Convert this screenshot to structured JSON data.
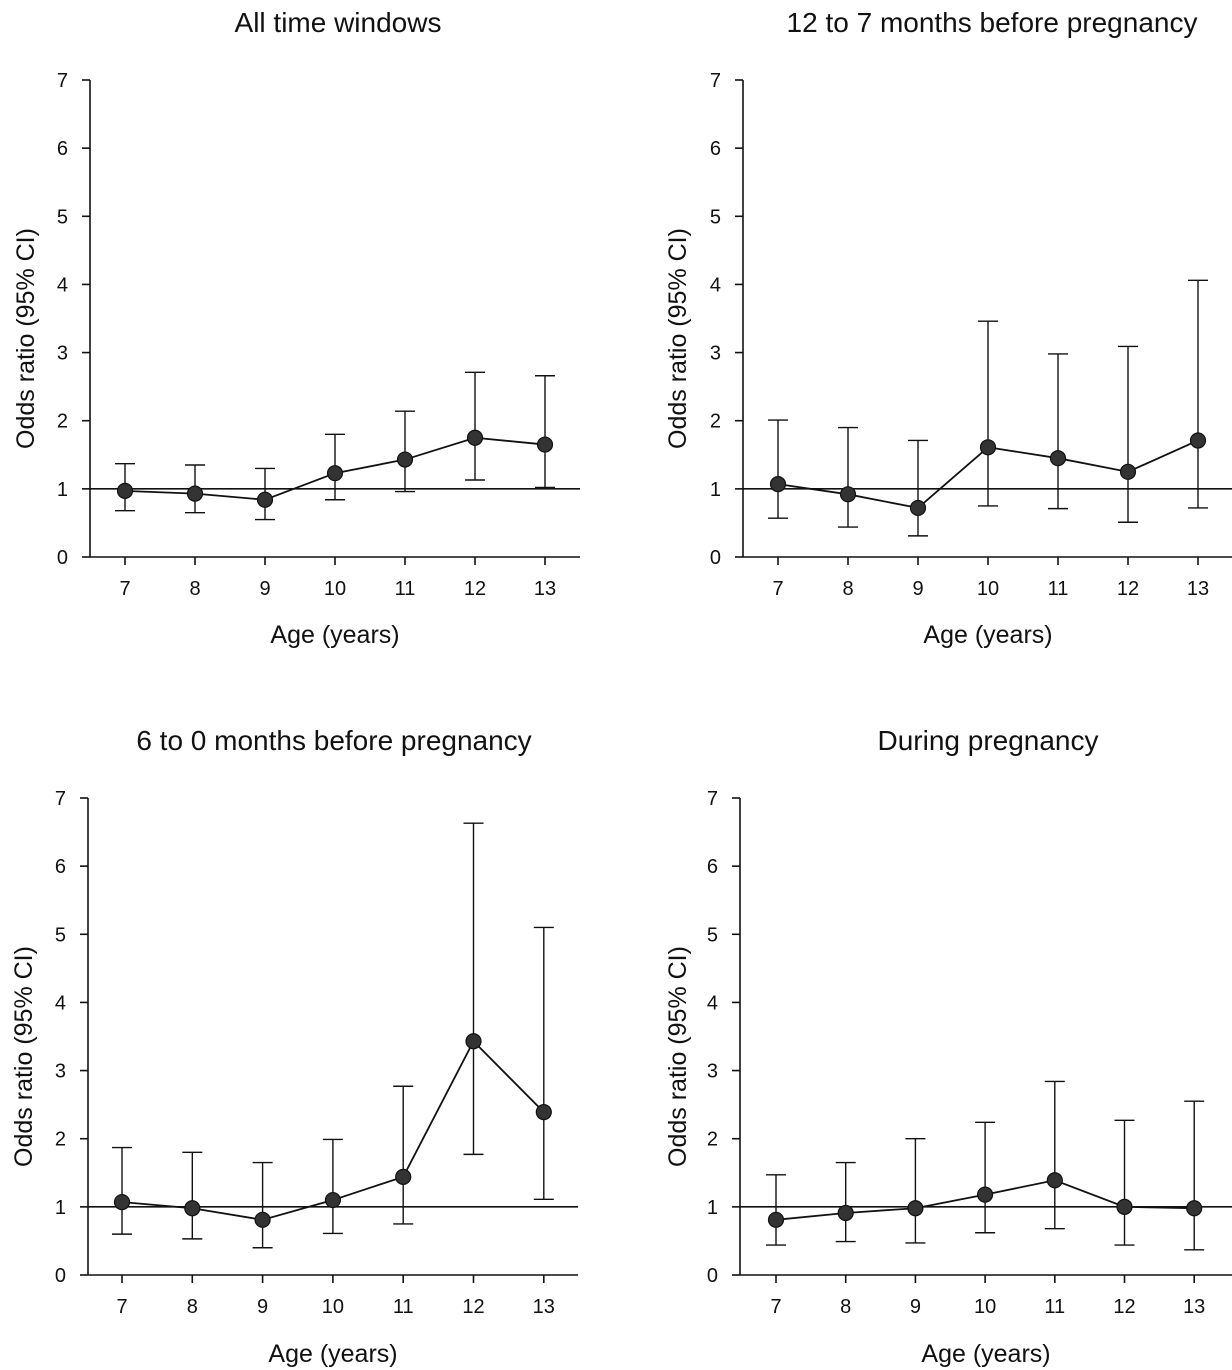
{
  "chart_data": [
    {
      "type": "line",
      "title": "All time windows",
      "xlabel": "Age (years)",
      "ylabel": "Odds ratio (95% CI)",
      "x": [
        7,
        8,
        9,
        10,
        11,
        12,
        13
      ],
      "x_tick_labels": [
        "7",
        "8",
        "9",
        "10",
        "11",
        "12",
        "13"
      ],
      "y_tick_labels": [
        "0",
        "1",
        "2",
        "3",
        "4",
        "5",
        "6",
        "7"
      ],
      "ylim": [
        0,
        7
      ],
      "reference_line": 1,
      "y": [
        0.97,
        0.93,
        0.84,
        1.23,
        1.43,
        1.75,
        1.65
      ],
      "ci_lower": [
        0.68,
        0.65,
        0.55,
        0.84,
        0.96,
        1.13,
        1.02
      ],
      "ci_upper": [
        1.37,
        1.35,
        1.3,
        1.8,
        2.14,
        2.71,
        2.66
      ]
    },
    {
      "type": "line",
      "title": "12 to 7 months before pregnancy",
      "xlabel": "Age (years)",
      "ylabel": "Odds ratio (95% CI)",
      "x": [
        7,
        8,
        9,
        10,
        11,
        12,
        13
      ],
      "x_tick_labels": [
        "7",
        "8",
        "9",
        "10",
        "11",
        "12",
        "13"
      ],
      "y_tick_labels": [
        "0",
        "1",
        "2",
        "3",
        "4",
        "5",
        "6",
        "7"
      ],
      "ylim": [
        0,
        7
      ],
      "reference_line": 1,
      "y": [
        1.07,
        0.92,
        0.72,
        1.61,
        1.45,
        1.25,
        1.71
      ],
      "ci_lower": [
        0.57,
        0.44,
        0.31,
        0.75,
        0.71,
        0.51,
        0.72
      ],
      "ci_upper": [
        2.01,
        1.9,
        1.71,
        3.46,
        2.98,
        3.09,
        4.06
      ]
    },
    {
      "type": "line",
      "title": "6 to 0 months before pregnancy",
      "xlabel": "Age (years)",
      "ylabel": "Odds ratio (95% CI)",
      "x": [
        7,
        8,
        9,
        10,
        11,
        12,
        13
      ],
      "x_tick_labels": [
        "7",
        "8",
        "9",
        "10",
        "11",
        "12",
        "13"
      ],
      "y_tick_labels": [
        "0",
        "1",
        "2",
        "3",
        "4",
        "5",
        "6",
        "7"
      ],
      "ylim": [
        0,
        7
      ],
      "reference_line": 1,
      "y": [
        1.07,
        0.98,
        0.81,
        1.1,
        1.44,
        3.43,
        2.39
      ],
      "ci_lower": [
        0.6,
        0.53,
        0.4,
        0.61,
        0.75,
        1.77,
        1.11
      ],
      "ci_upper": [
        1.87,
        1.8,
        1.65,
        1.99,
        2.77,
        6.63,
        5.1
      ]
    },
    {
      "type": "line",
      "title": "During pregnancy",
      "xlabel": "Age (years)",
      "ylabel": "Odds ratio (95% CI)",
      "x": [
        7,
        8,
        9,
        10,
        11,
        12,
        13
      ],
      "x_tick_labels": [
        "7",
        "8",
        "9",
        "10",
        "11",
        "12",
        "13"
      ],
      "y_tick_labels": [
        "0",
        "1",
        "2",
        "3",
        "4",
        "5",
        "6",
        "7"
      ],
      "ylim": [
        0,
        7
      ],
      "reference_line": 1,
      "y": [
        0.81,
        0.91,
        0.98,
        1.18,
        1.39,
        1.0,
        0.98
      ],
      "ci_lower": [
        0.44,
        0.49,
        0.47,
        0.62,
        0.68,
        0.44,
        0.37
      ],
      "ci_upper": [
        1.47,
        1.65,
        2.0,
        2.24,
        2.84,
        2.27,
        2.55
      ]
    }
  ]
}
